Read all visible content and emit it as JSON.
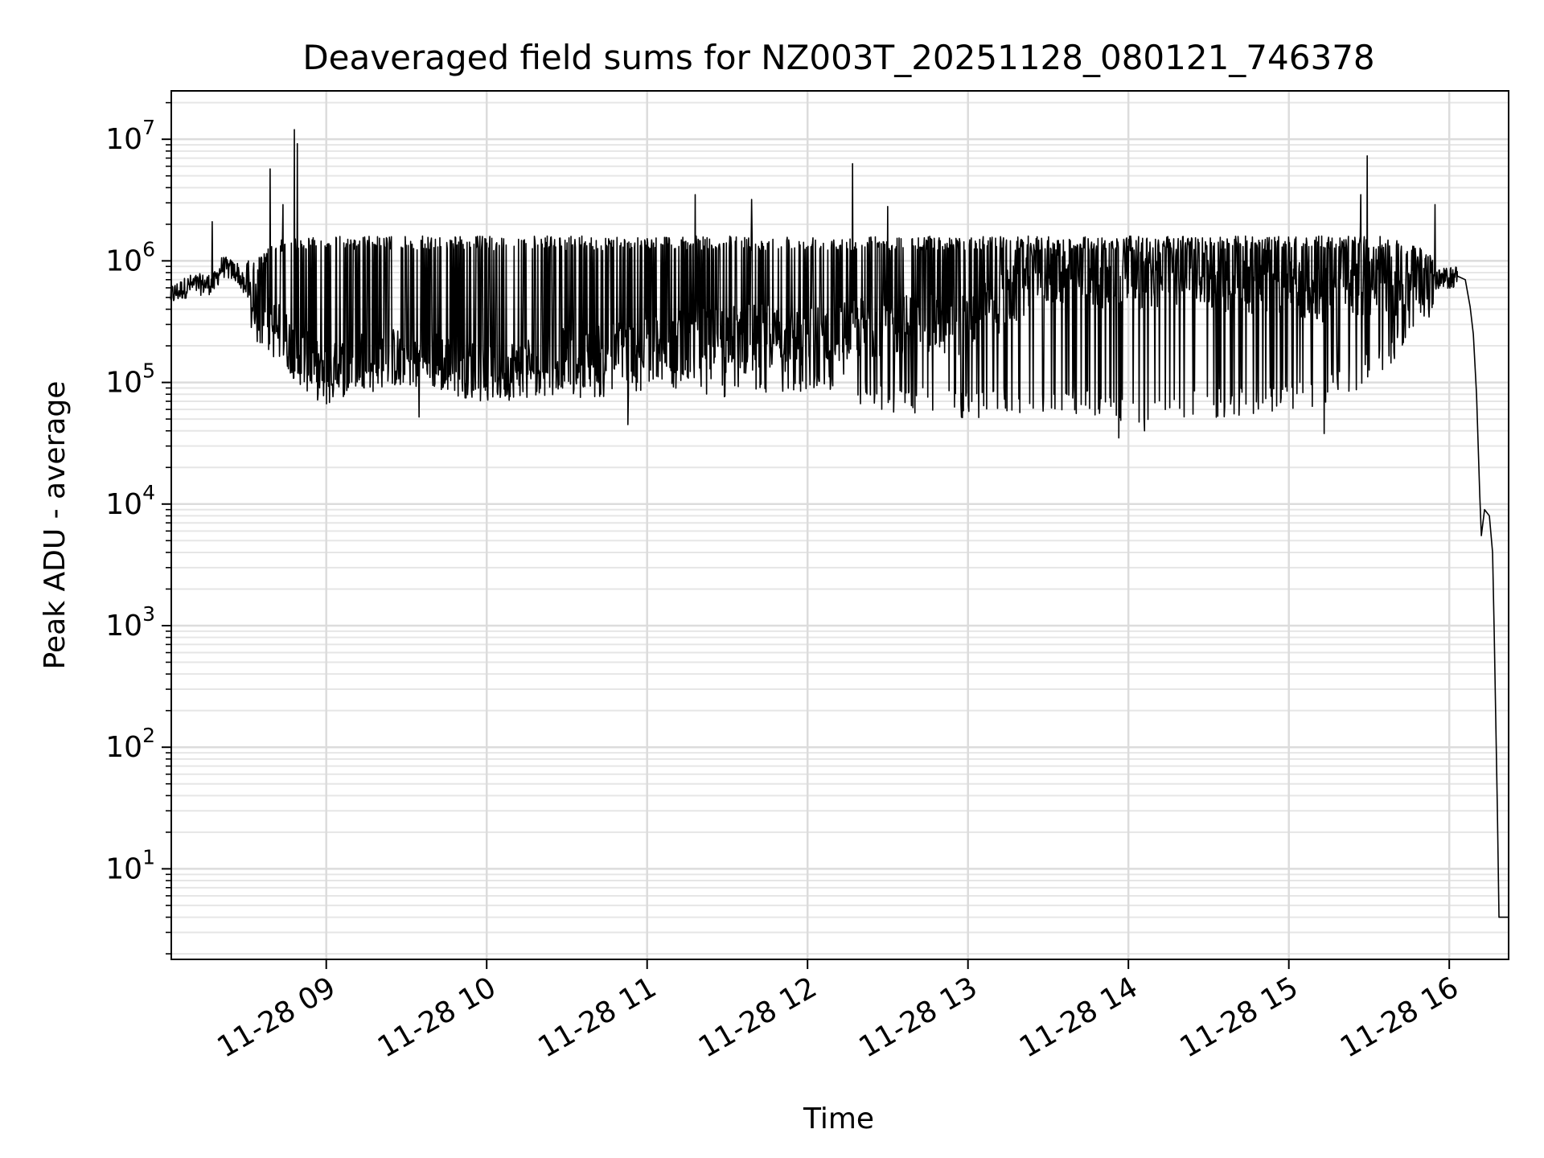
{
  "chart_data": {
    "type": "line",
    "title": "Deaveraged field sums for NZ003T_20251128_080121_746378",
    "xlabel": "Time",
    "ylabel": "Peak ADU - average",
    "yscale": "log",
    "grid": true,
    "xlim_hours": [
      8.034,
      16.37
    ],
    "ylim": [
      1.8,
      25000000
    ],
    "x_ticks": [
      {
        "hour": 9,
        "label": "11-28 09"
      },
      {
        "hour": 10,
        "label": "11-28 10"
      },
      {
        "hour": 11,
        "label": "11-28 11"
      },
      {
        "hour": 12,
        "label": "11-28 12"
      },
      {
        "hour": 13,
        "label": "11-28 13"
      },
      {
        "hour": 14,
        "label": "11-28 14"
      },
      {
        "hour": 15,
        "label": "11-28 15"
      },
      {
        "hour": 16,
        "label": "11-28 16"
      }
    ],
    "y_ticks": [
      {
        "value": 10,
        "base": "10",
        "exp": "1"
      },
      {
        "value": 100,
        "base": "10",
        "exp": "2"
      },
      {
        "value": 1000,
        "base": "10",
        "exp": "3"
      },
      {
        "value": 10000,
        "base": "10",
        "exp": "4"
      },
      {
        "value": 100000,
        "base": "10",
        "exp": "5"
      },
      {
        "value": 1000000,
        "base": "10",
        "exp": "6"
      },
      {
        "value": 10000000,
        "base": "10",
        "exp": "7"
      }
    ],
    "series": [
      {
        "name": "peak_adu_minus_average",
        "color": "#000000",
        "envelope": [
          {
            "hour": 8.03,
            "upper": 560000,
            "lower": 450000,
            "base": 520000
          },
          {
            "hour": 8.15,
            "upper": 800000,
            "lower": 500000,
            "base": 630000
          },
          {
            "hour": 8.3,
            "upper": 900000,
            "lower": 540000,
            "base": 650000
          },
          {
            "hour": 8.35,
            "upper": 1200000,
            "lower": 700000,
            "base": 900000
          },
          {
            "hour": 8.45,
            "upper": 1000000,
            "lower": 500000,
            "base": 800000
          },
          {
            "hour": 8.55,
            "upper": 1000000,
            "lower": 300000,
            "base": 380000
          },
          {
            "hour": 8.7,
            "upper": 1500000,
            "lower": 180000,
            "base": 260000
          },
          {
            "hour": 8.85,
            "upper": 1600000,
            "lower": 80000,
            "base": 160000
          },
          {
            "hour": 9.0,
            "upper": 1600000,
            "lower": 75000,
            "base": 110000
          },
          {
            "hour": 9.2,
            "upper": 1600000,
            "lower": 80000,
            "base": 160000
          },
          {
            "hour": 9.6,
            "upper": 1600000,
            "lower": 90000,
            "base": 160000
          },
          {
            "hour": 10.0,
            "upper": 1600000,
            "lower": 70000,
            "base": 120000
          },
          {
            "hour": 10.5,
            "upper": 1600000,
            "lower": 75000,
            "base": 160000
          },
          {
            "hour": 11.0,
            "upper": 1600000,
            "lower": 75000,
            "base": 200000
          },
          {
            "hour": 11.5,
            "upper": 1600000,
            "lower": 75000,
            "base": 250000
          },
          {
            "hour": 12.0,
            "upper": 1600000,
            "lower": 80000,
            "base": 250000
          },
          {
            "hour": 12.5,
            "upper": 1600000,
            "lower": 55000,
            "base": 300000
          },
          {
            "hour": 13.0,
            "upper": 1600000,
            "lower": 50000,
            "base": 300000
          },
          {
            "hour": 13.5,
            "upper": 1600000,
            "lower": 55000,
            "base": 800000
          },
          {
            "hour": 14.0,
            "upper": 1600000,
            "lower": 45000,
            "base": 700000
          },
          {
            "hour": 14.5,
            "upper": 1600000,
            "lower": 50000,
            "base": 700000
          },
          {
            "hour": 15.0,
            "upper": 1600000,
            "lower": 55000,
            "base": 600000
          },
          {
            "hour": 15.3,
            "upper": 1600000,
            "lower": 70000,
            "base": 500000
          },
          {
            "hour": 15.6,
            "upper": 1600000,
            "lower": 120000,
            "base": 650000
          },
          {
            "hour": 15.8,
            "upper": 1300000,
            "lower": 250000,
            "base": 600000
          },
          {
            "hour": 15.95,
            "upper": 1100000,
            "lower": 450000,
            "base": 700000
          },
          {
            "hour": 16.05,
            "upper": 900000,
            "lower": 600000,
            "base": 750000
          }
        ],
        "spikes": [
          {
            "hour": 8.29,
            "value": 2100000
          },
          {
            "hour": 8.65,
            "value": 5700000
          },
          {
            "hour": 8.73,
            "value": 2900000
          },
          {
            "hour": 8.8,
            "value": 12000000
          },
          {
            "hour": 8.82,
            "value": 9200000
          },
          {
            "hour": 11.3,
            "value": 3500000
          },
          {
            "hour": 11.65,
            "value": 3200000
          },
          {
            "hour": 12.28,
            "value": 6300000
          },
          {
            "hour": 12.5,
            "value": 2800000
          },
          {
            "hour": 15.49,
            "value": 7300000
          },
          {
            "hour": 15.45,
            "value": 3500000
          },
          {
            "hour": 15.91,
            "value": 2900000
          }
        ],
        "dips": [
          {
            "hour": 9.58,
            "value": 52000
          },
          {
            "hour": 10.88,
            "value": 45000
          },
          {
            "hour": 13.94,
            "value": 35000
          },
          {
            "hour": 14.1,
            "value": 40000
          },
          {
            "hour": 15.22,
            "value": 38000
          }
        ],
        "tail": [
          {
            "hour": 16.05,
            "value": 750000
          },
          {
            "hour": 16.1,
            "value": 700000
          },
          {
            "hour": 16.13,
            "value": 420000
          },
          {
            "hour": 16.15,
            "value": 250000
          },
          {
            "hour": 16.17,
            "value": 80000
          },
          {
            "hour": 16.19,
            "value": 12000
          },
          {
            "hour": 16.2,
            "value": 5500
          },
          {
            "hour": 16.22,
            "value": 9000
          },
          {
            "hour": 16.25,
            "value": 8000
          },
          {
            "hour": 16.27,
            "value": 4000
          },
          {
            "hour": 16.28,
            "value": 900
          },
          {
            "hour": 16.3,
            "value": 30
          },
          {
            "hour": 16.31,
            "value": 4
          },
          {
            "hour": 16.37,
            "value": 4
          }
        ]
      }
    ]
  }
}
